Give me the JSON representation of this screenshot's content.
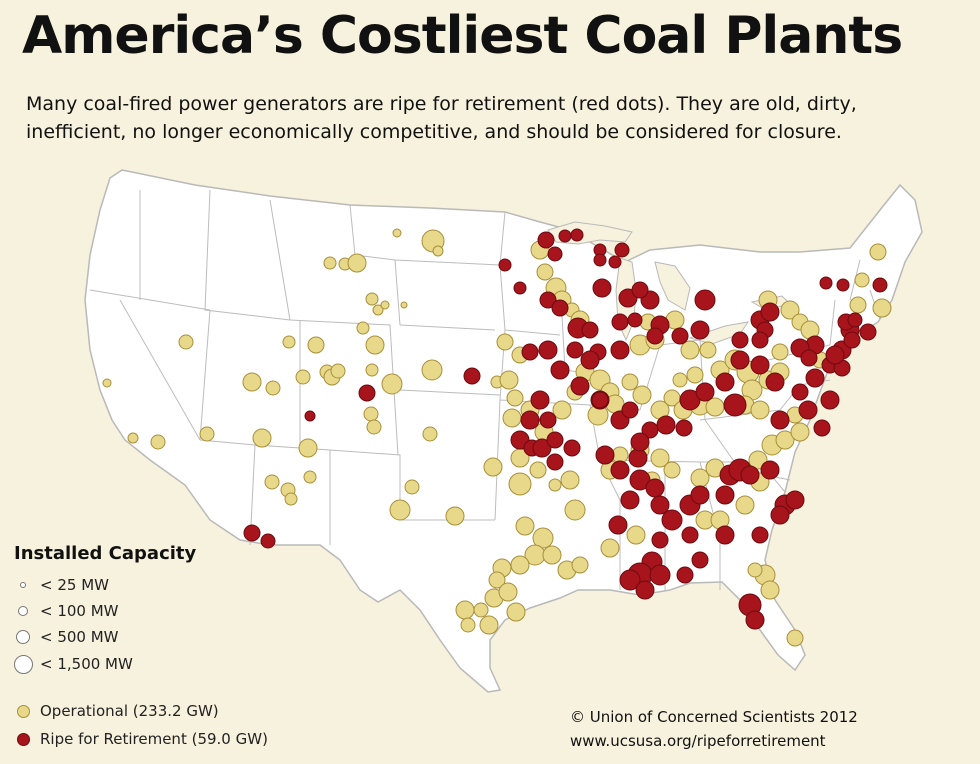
{
  "header": {
    "title": "America’s Costliest Coal Plants",
    "subtitle": "Many coal-fired power generators are ripe for retirement (red dots). They are old, dirty, inefficient, no longer economically competitive, and should be considered for closure."
  },
  "legend": {
    "title": "Installed Capacity",
    "sizes": [
      {
        "label": "< 25 MW"
      },
      {
        "label": "< 100 MW"
      },
      {
        "label": "< 500 MW"
      },
      {
        "label": "< 1,500 MW"
      }
    ],
    "categories": [
      {
        "label": "Operational (233.2 GW)",
        "color": "#e8d98a"
      },
      {
        "label": "Ripe for Retirement (59.0 GW)",
        "color": "#a8141c"
      }
    ]
  },
  "credit": {
    "copyright": "© Union of Concerned Scientists 2012",
    "url": "www.ucsusa.org/ripeforretirement"
  },
  "colors": {
    "background": "#f7f2dd",
    "land": "#ffffff",
    "border": "#b9b9b9",
    "operational": "#e8d98a",
    "retirement": "#a8141c"
  }
}
